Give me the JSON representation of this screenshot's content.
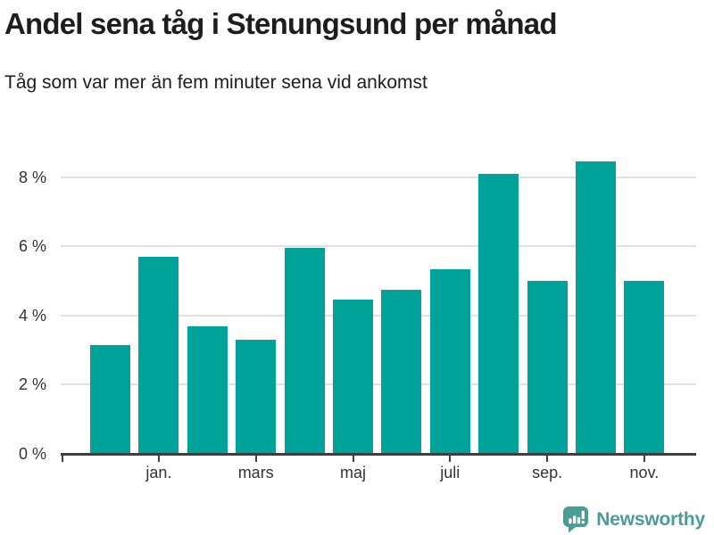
{
  "header": {
    "title": "Andel sena tåg i Stenungsund per månad",
    "subtitle": "Tåg som var mer än fem minuter sena vid ankomst"
  },
  "chart_data": {
    "type": "bar",
    "title": "Andel sena tåg i Stenungsund per månad",
    "subtitle": "Tåg som var mer än fem minuter sena vid ankomst",
    "unit": "%",
    "values": [
      3.15,
      5.7,
      3.7,
      3.3,
      5.95,
      4.45,
      4.75,
      5.35,
      8.1,
      5.0,
      8.45,
      5.0
    ],
    "x_tick_labels": [
      "jan.",
      "mars",
      "maj",
      "juli",
      "sep.",
      "nov."
    ],
    "labeled_bar_indexes": [
      1,
      3,
      5,
      7,
      9,
      11
    ],
    "y_tick_labels": [
      "0 %",
      "2 %",
      "4 %",
      "6 %",
      "8 %"
    ],
    "y_tick_values": [
      0,
      2,
      4,
      6,
      8
    ],
    "ylim": [
      0,
      9
    ],
    "grid": "horizontal-light-gray",
    "legend": "none",
    "bar_color": "#00a39a"
  },
  "brand": {
    "label": "Newsworthy",
    "color": "#4a9c94"
  },
  "colors": {
    "bar": "#00a39a",
    "grid": "#e1e1e1",
    "axis": "#3f3f3f",
    "title_text": "#1d1d1d",
    "axis_text": "#333333",
    "brand": "#4a9c94"
  }
}
